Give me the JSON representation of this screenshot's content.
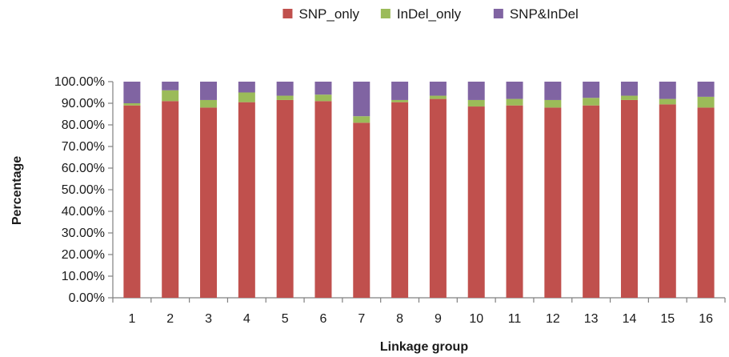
{
  "chart_data": {
    "type": "bar",
    "stacked": true,
    "xlabel": "Linkage group",
    "ylabel": "Percentage",
    "ylim": [
      0,
      100
    ],
    "yticks": [
      "0.00%",
      "10.00%",
      "20.00%",
      "30.00%",
      "40.00%",
      "50.00%",
      "60.00%",
      "70.00%",
      "80.00%",
      "90.00%",
      "100.00%"
    ],
    "categories": [
      "1",
      "2",
      "3",
      "4",
      "5",
      "6",
      "7",
      "8",
      "9",
      "10",
      "11",
      "12",
      "13",
      "14",
      "15",
      "16"
    ],
    "legend_position": "top",
    "grid": false,
    "series": [
      {
        "name": "SNP_only",
        "color": "#c0504d",
        "values": [
          89,
          91,
          88,
          90.5,
          91.5,
          91,
          81,
          90.5,
          92,
          88.5,
          89,
          88,
          89,
          91.5,
          89.5,
          88
        ]
      },
      {
        "name": "InDel_only",
        "color": "#9bbb59",
        "values": [
          1,
          5,
          3.5,
          4.5,
          2,
          3,
          3,
          1,
          1.5,
          3,
          3,
          3.5,
          3.5,
          2,
          2.5,
          5
        ]
      },
      {
        "name": "SNP&InDel",
        "color": "#8064a2",
        "values": [
          10,
          4,
          8.5,
          5,
          6.5,
          6,
          16,
          8.5,
          6.5,
          8.5,
          8,
          8.5,
          7.5,
          6.5,
          8,
          7
        ]
      }
    ]
  }
}
